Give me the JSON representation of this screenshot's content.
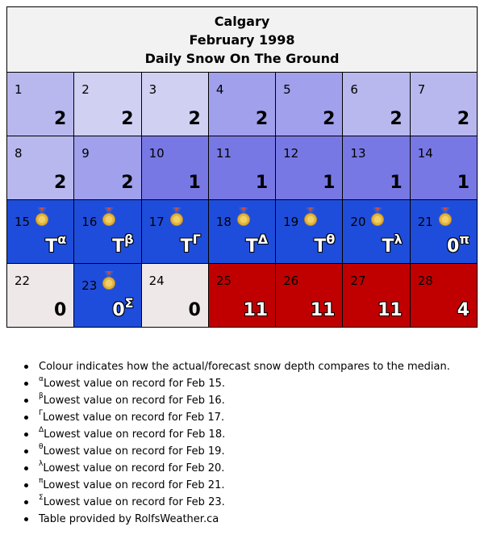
{
  "header": {
    "city": "Calgary",
    "month": "February 1998",
    "subtitle": "Daily Snow On The Ground"
  },
  "colors": {
    "light_lavender": "#d0d0f2",
    "medium_lavender": "#b8b8ef",
    "periwinkle": "#a0a0ec",
    "blue_purple": "#7878e4",
    "record_blue": "#1f4ddb",
    "near_white": "#efe8e8",
    "record_red": "#c00000"
  },
  "weeks": [
    [
      {
        "day": "1",
        "value": "2",
        "sup": "",
        "bg": "#b8b8ef",
        "medal": false,
        "outline": false
      },
      {
        "day": "2",
        "value": "2",
        "sup": "",
        "bg": "#d0d0f2",
        "medal": false,
        "outline": false
      },
      {
        "day": "3",
        "value": "2",
        "sup": "",
        "bg": "#d0d0f2",
        "medal": false,
        "outline": false
      },
      {
        "day": "4",
        "value": "2",
        "sup": "",
        "bg": "#a0a0ec",
        "medal": false,
        "outline": false
      },
      {
        "day": "5",
        "value": "2",
        "sup": "",
        "bg": "#a0a0ec",
        "medal": false,
        "outline": false
      },
      {
        "day": "6",
        "value": "2",
        "sup": "",
        "bg": "#b8b8ef",
        "medal": false,
        "outline": false
      },
      {
        "day": "7",
        "value": "2",
        "sup": "",
        "bg": "#b8b8ef",
        "medal": false,
        "outline": false
      }
    ],
    [
      {
        "day": "8",
        "value": "2",
        "sup": "",
        "bg": "#b8b8ef",
        "medal": false,
        "outline": false
      },
      {
        "day": "9",
        "value": "2",
        "sup": "",
        "bg": "#a0a0ec",
        "medal": false,
        "outline": false
      },
      {
        "day": "10",
        "value": "1",
        "sup": "",
        "bg": "#7878e4",
        "medal": false,
        "outline": false
      },
      {
        "day": "11",
        "value": "1",
        "sup": "",
        "bg": "#7878e4",
        "medal": false,
        "outline": false
      },
      {
        "day": "12",
        "value": "1",
        "sup": "",
        "bg": "#7878e4",
        "medal": false,
        "outline": false
      },
      {
        "day": "13",
        "value": "1",
        "sup": "",
        "bg": "#7878e4",
        "medal": false,
        "outline": false
      },
      {
        "day": "14",
        "value": "1",
        "sup": "",
        "bg": "#7878e4",
        "medal": false,
        "outline": false
      }
    ],
    [
      {
        "day": "15",
        "value": "T",
        "sup": "α",
        "bg": "#1f4ddb",
        "medal": true,
        "outline": true
      },
      {
        "day": "16",
        "value": "T",
        "sup": "β",
        "bg": "#1f4ddb",
        "medal": true,
        "outline": true
      },
      {
        "day": "17",
        "value": "T",
        "sup": "Γ",
        "bg": "#1f4ddb",
        "medal": true,
        "outline": true
      },
      {
        "day": "18",
        "value": "T",
        "sup": "Δ",
        "bg": "#1f4ddb",
        "medal": true,
        "outline": true
      },
      {
        "day": "19",
        "value": "T",
        "sup": "θ",
        "bg": "#1f4ddb",
        "medal": true,
        "outline": true
      },
      {
        "day": "20",
        "value": "T",
        "sup": "λ",
        "bg": "#1f4ddb",
        "medal": true,
        "outline": true
      },
      {
        "day": "21",
        "value": "0",
        "sup": "π",
        "bg": "#1f4ddb",
        "medal": true,
        "outline": true
      }
    ],
    [
      {
        "day": "22",
        "value": "0",
        "sup": "",
        "bg": "#efe8e8",
        "medal": false,
        "outline": false
      },
      {
        "day": "23",
        "value": "0",
        "sup": "Σ",
        "bg": "#1f4ddb",
        "medal": true,
        "outline": true
      },
      {
        "day": "24",
        "value": "0",
        "sup": "",
        "bg": "#efe8e8",
        "medal": false,
        "outline": false
      },
      {
        "day": "25",
        "value": "11",
        "sup": "",
        "bg": "#c00000",
        "medal": false,
        "outline": true
      },
      {
        "day": "26",
        "value": "11",
        "sup": "",
        "bg": "#c00000",
        "medal": false,
        "outline": true
      },
      {
        "day": "27",
        "value": "11",
        "sup": "",
        "bg": "#c00000",
        "medal": false,
        "outline": true
      },
      {
        "day": "28",
        "value": "4",
        "sup": "",
        "bg": "#c00000",
        "medal": false,
        "outline": true
      }
    ]
  ],
  "notes": [
    {
      "sup": "",
      "text": "Colour indicates how the actual/forecast snow depth compares to the median."
    },
    {
      "sup": "α",
      "text": "Lowest value on record for Feb 15."
    },
    {
      "sup": "β",
      "text": "Lowest value on record for Feb 16."
    },
    {
      "sup": "Γ",
      "text": "Lowest value on record for Feb 17."
    },
    {
      "sup": "Δ",
      "text": "Lowest value on record for Feb 18."
    },
    {
      "sup": "θ",
      "text": "Lowest value on record for Feb 19."
    },
    {
      "sup": "λ",
      "text": "Lowest value on record for Feb 20."
    },
    {
      "sup": "π",
      "text": "Lowest value on record for Feb 21."
    },
    {
      "sup": "Σ",
      "text": "Lowest value on record for Feb 23."
    },
    {
      "sup": "",
      "text": "Table provided by RolfsWeather.ca"
    }
  ]
}
